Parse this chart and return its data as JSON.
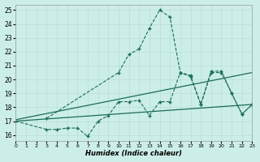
{
  "xlabel": "Humidex (Indice chaleur)",
  "bg_color": "#cceee8",
  "line_color": "#1a6b5a",
  "grid_color": "#b8ddd8",
  "xlim": [
    0,
    23
  ],
  "ylim": [
    15.6,
    25.4
  ],
  "xticks": [
    0,
    1,
    2,
    3,
    4,
    5,
    6,
    7,
    8,
    9,
    10,
    11,
    12,
    13,
    14,
    15,
    16,
    17,
    18,
    19,
    20,
    21,
    22,
    23
  ],
  "yticks": [
    16,
    17,
    18,
    19,
    20,
    21,
    22,
    23,
    24,
    25
  ],
  "series": [
    {
      "x": [
        0,
        3,
        4,
        5,
        6,
        7,
        8,
        9,
        10,
        11,
        12,
        13,
        14,
        15,
        16,
        17,
        18,
        19,
        20,
        21,
        22,
        23
      ],
      "y": [
        17,
        16.4,
        16.4,
        16.5,
        16.5,
        15.9,
        17.0,
        17.4,
        18.4,
        18.4,
        18.5,
        17.4,
        18.4,
        18.4,
        20.5,
        20.3,
        18.2,
        20.5,
        20.5,
        19.0,
        17.5,
        18.2
      ],
      "marker": "+",
      "markersize": 3.5,
      "linestyle": "--",
      "linewidth": 0.8
    },
    {
      "x": [
        3,
        10,
        11,
        12,
        13,
        14,
        15,
        16,
        17,
        18,
        19,
        20,
        21,
        22,
        23
      ],
      "y": [
        17.2,
        20.5,
        21.8,
        22.2,
        23.7,
        25.0,
        24.5,
        20.5,
        20.2,
        18.2,
        20.6,
        20.6,
        19.0,
        17.5,
        18.2
      ],
      "marker": "+",
      "markersize": 3.5,
      "linestyle": "--",
      "linewidth": 0.8
    },
    {
      "x": [
        0,
        23
      ],
      "y": [
        17.1,
        20.5
      ],
      "marker": null,
      "markersize": 0,
      "linestyle": "-",
      "linewidth": 0.9
    },
    {
      "x": [
        0,
        23
      ],
      "y": [
        17.0,
        18.2
      ],
      "marker": null,
      "markersize": 0,
      "linestyle": "-",
      "linewidth": 0.9
    }
  ]
}
